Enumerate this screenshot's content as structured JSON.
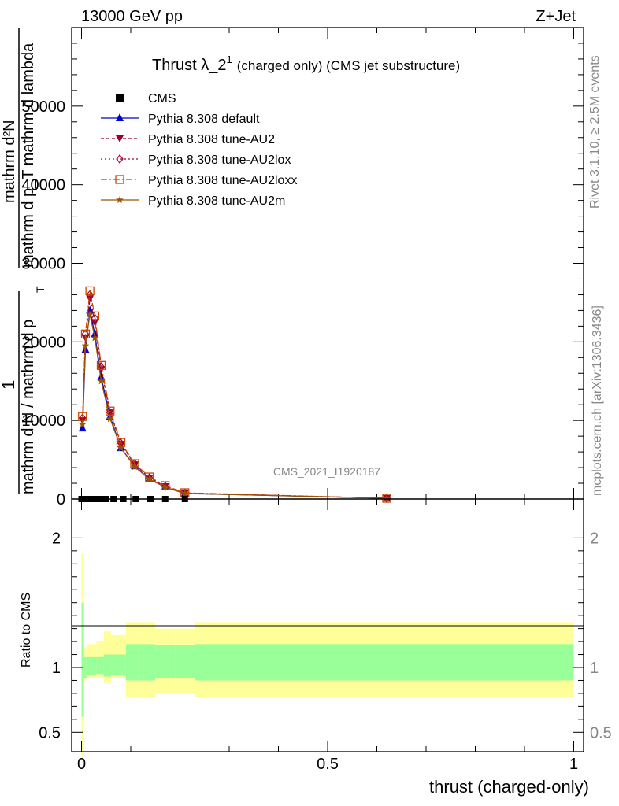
{
  "header": {
    "energy_label": "13000 GeV pp",
    "process_label": "Z+Jet"
  },
  "side_text": {
    "rivet": "Rivet 3.1.10, ≥ 2.5M events",
    "mcplots": "mcplots.cern.ch [arXiv:1306.3436]"
  },
  "watermark": "CMS_2021_I1920187",
  "chart_data": [
    {
      "type": "line",
      "title": "Thrust λ_2",
      "title_sup": "1",
      "title_suffix": "(charged only) (CMS jet substructure)",
      "ylabel_numerator": "mathrm d²N",
      "ylabel_denominator": "mathrm d p_T mathrm d lambda",
      "ylabel_prefix_num": "1",
      "ylabel_prefix_den": "mathrm d N / mathrm d p",
      "ylabel_prefix_sub": "T",
      "xlim": [
        -0.02,
        1.02
      ],
      "ylim": [
        0,
        60000
      ],
      "yticks": [
        0,
        10000,
        20000,
        30000,
        40000,
        50000
      ],
      "ytick_labels": [
        "0",
        "10000",
        "20000",
        "30000",
        "40000",
        "50000"
      ],
      "legend_position": "top-left",
      "legend": [
        {
          "name": "CMS",
          "color": "#000000",
          "marker": "square",
          "dash": "none"
        },
        {
          "name": "Pythia 8.308 default",
          "color": "#0000cc",
          "marker": "triangle-up",
          "dash": "solid"
        },
        {
          "name": "Pythia 8.308 tune-AU2",
          "color": "#990033",
          "marker": "triangle-down",
          "dash": "4,3"
        },
        {
          "name": "Pythia 8.308 tune-AU2lox",
          "color": "#aa0033",
          "marker": "diamond-open",
          "dash": "2,3"
        },
        {
          "name": "Pythia 8.308 tune-AU2loxx",
          "color": "#cc4400",
          "marker": "square-open",
          "dash": "8,3,2,3"
        },
        {
          "name": "Pythia 8.308 tune-AU2m",
          "color": "#995500",
          "marker": "star",
          "dash": "solid"
        }
      ],
      "cms_points": {
        "x": [
          0.0,
          0.01,
          0.02,
          0.03,
          0.04,
          0.05,
          0.065,
          0.085,
          0.11,
          0.14,
          0.17,
          0.21
        ],
        "y": [
          0,
          0,
          0,
          0,
          0,
          0,
          0,
          0,
          0,
          0,
          0,
          0
        ]
      },
      "series": [
        {
          "name": "Pythia 8.308 default",
          "x": [
            0.002,
            0.008,
            0.017,
            0.027,
            0.04,
            0.058,
            0.08,
            0.108,
            0.138,
            0.17,
            0.21,
            0.62
          ],
          "y": [
            9000,
            19000,
            24000,
            21000,
            15500,
            10500,
            6500,
            4200,
            2500,
            1500,
            700,
            100
          ]
        },
        {
          "name": "Pythia 8.308 tune-AU2",
          "x": [
            0.002,
            0.008,
            0.017,
            0.027,
            0.04,
            0.058,
            0.08,
            0.108,
            0.138,
            0.17,
            0.21,
            0.62
          ],
          "y": [
            10000,
            20500,
            25500,
            22500,
            16500,
            11000,
            7000,
            4400,
            2700,
            1600,
            750,
            100
          ]
        },
        {
          "name": "Pythia 8.308 tune-AU2lox",
          "x": [
            0.002,
            0.008,
            0.017,
            0.027,
            0.04,
            0.058,
            0.08,
            0.108,
            0.138,
            0.17,
            0.21,
            0.62
          ],
          "y": [
            10300,
            21000,
            26000,
            23000,
            16800,
            11000,
            7100,
            4500,
            2700,
            1600,
            750,
            100
          ]
        },
        {
          "name": "Pythia 8.308 tune-AU2loxx",
          "x": [
            0.002,
            0.008,
            0.017,
            0.027,
            0.04,
            0.058,
            0.08,
            0.108,
            0.138,
            0.17,
            0.21,
            0.62
          ],
          "y": [
            10500,
            21000,
            26500,
            23300,
            17000,
            11200,
            7200,
            4500,
            2800,
            1700,
            800,
            100
          ]
        },
        {
          "name": "Pythia 8.308 tune-AU2m",
          "x": [
            0.002,
            0.008,
            0.017,
            0.027,
            0.04,
            0.058,
            0.08,
            0.108,
            0.138,
            0.17,
            0.21,
            0.62
          ],
          "y": [
            9500,
            19500,
            23500,
            20500,
            15000,
            10200,
            6500,
            4100,
            2500,
            1500,
            700,
            100
          ]
        }
      ]
    },
    {
      "type": "area",
      "ylabel": "Ratio to CMS",
      "xlabel": "thrust (charged-only)",
      "xlim": [
        -0.02,
        1.02
      ],
      "ylim": [
        0.35,
        2.3
      ],
      "yticks": [
        0.5,
        1,
        2
      ],
      "ytick_labels": [
        "0.5",
        "1",
        "2"
      ],
      "xticks": [
        0,
        0.5,
        1
      ],
      "xtick_labels": [
        "0",
        "0.5",
        "1"
      ],
      "bands": {
        "bins": [
          [
            0.0,
            0.005
          ],
          [
            0.005,
            0.01
          ],
          [
            0.01,
            0.03
          ],
          [
            0.03,
            0.045
          ],
          [
            0.045,
            0.06
          ],
          [
            0.06,
            0.09
          ],
          [
            0.09,
            0.115
          ],
          [
            0.115,
            0.15
          ],
          [
            0.15,
            0.19
          ],
          [
            0.19,
            0.23
          ],
          [
            0.23,
            1.0
          ]
        ],
        "green_low": [
          0.62,
          0.92,
          0.94,
          0.95,
          0.93,
          0.94,
          0.9,
          0.9,
          0.92,
          0.92,
          0.9
        ],
        "green_high": [
          1.5,
          1.08,
          1.08,
          1.08,
          1.1,
          1.1,
          1.18,
          1.18,
          1.17,
          1.17,
          1.18
        ],
        "yellow_low": [
          0.3,
          0.9,
          0.92,
          0.92,
          0.88,
          0.92,
          0.77,
          0.77,
          0.8,
          0.8,
          0.77
        ],
        "yellow_high": [
          1.88,
          1.15,
          1.18,
          1.2,
          1.28,
          1.25,
          1.35,
          1.35,
          1.3,
          1.3,
          1.35
        ]
      },
      "colors": {
        "green": "#99ff99",
        "yellow": "#ffff99"
      }
    }
  ]
}
